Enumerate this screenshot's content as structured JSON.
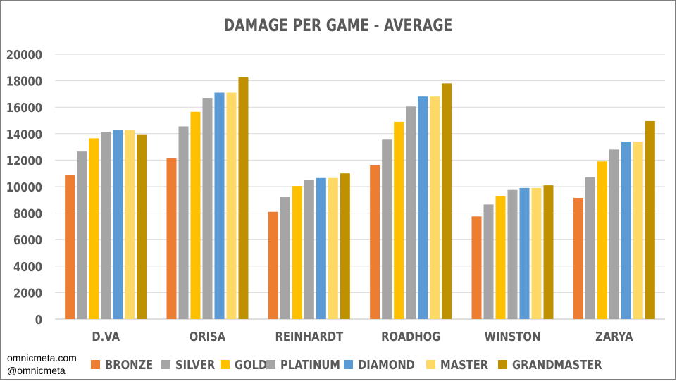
{
  "credits": [
    "omnicmeta.com",
    "@omnicmeta"
  ],
  "colors": {
    "BRONZE": "#ed7d31",
    "SILVER": "#a5a5a5",
    "GOLD": "#ffc000",
    "PLATINUM": "#a5a5a5",
    "DIAMOND": "#5b9bd5",
    "MASTER": "#ffd966",
    "GRANDMASTER": "#bf9000"
  },
  "chart_data": {
    "type": "bar",
    "title": "DAMAGE PER GAME - AVERAGE",
    "categories": [
      "D.VA",
      "ORISA",
      "REINHARDT",
      "ROADHOG",
      "WINSTON",
      "ZARYA"
    ],
    "ylim": [
      0,
      20000
    ],
    "yticks": [
      0,
      2000,
      4000,
      6000,
      8000,
      10000,
      12000,
      14000,
      16000,
      18000,
      20000
    ],
    "grid": true,
    "legend": "bottom",
    "series": [
      {
        "name": "BRONZE",
        "values": [
          10900,
          12150,
          8100,
          11600,
          7750,
          9150
        ]
      },
      {
        "name": "SILVER",
        "values": [
          12650,
          14550,
          9200,
          13550,
          8650,
          10700
        ]
      },
      {
        "name": "GOLD",
        "values": [
          13650,
          15650,
          10050,
          14900,
          9300,
          11900
        ]
      },
      {
        "name": "PLATINUM",
        "values": [
          14150,
          16700,
          10500,
          16050,
          9750,
          12800
        ]
      },
      {
        "name": "DIAMOND",
        "values": [
          14300,
          17100,
          10650,
          16800,
          9900,
          13400
        ]
      },
      {
        "name": "MASTER",
        "values": [
          14300,
          17100,
          10650,
          16800,
          9900,
          13400
        ]
      },
      {
        "name": "GRANDMASTER",
        "values": [
          13950,
          18250,
          11000,
          17800,
          10100,
          14950
        ]
      }
    ]
  }
}
